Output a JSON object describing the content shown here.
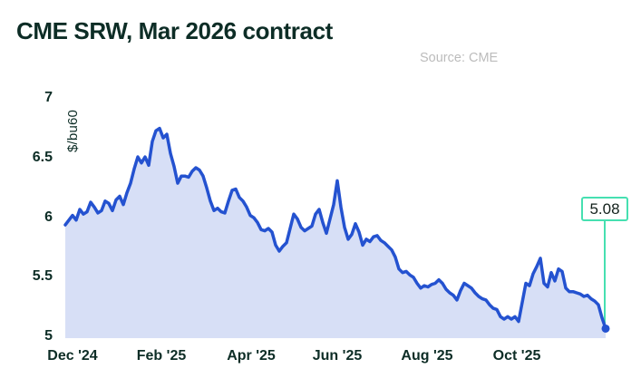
{
  "header": {
    "title": "CME SRW, Mar 2026 contract",
    "source_note": "Source: CME"
  },
  "chart_data": {
    "type": "area",
    "title": "CME SRW, Mar 2026 contract",
    "xlabel": "",
    "ylabel": "$/bu60",
    "ylim": [
      5,
      7
    ],
    "grid": false,
    "legend": "none",
    "x_tick_labels": [
      "Dec '24",
      "Feb '25",
      "Apr '25",
      "Jun '25",
      "Aug '25",
      "Oct '25"
    ],
    "y_tick_labels": [
      "7",
      "6.5",
      "6",
      "5.5",
      "5"
    ],
    "y_tick_values": [
      7,
      6.5,
      6,
      5.5,
      5
    ],
    "series": [
      {
        "name": "CME SRW Mar 2026 settlement price",
        "values": [
          5.95,
          5.99,
          6.03,
          5.99,
          6.08,
          6.04,
          6.06,
          6.14,
          6.1,
          6.05,
          6.07,
          6.15,
          6.13,
          6.07,
          6.16,
          6.19,
          6.12,
          6.22,
          6.3,
          6.42,
          6.52,
          6.47,
          6.52,
          6.45,
          6.65,
          6.74,
          6.76,
          6.68,
          6.71,
          6.55,
          6.44,
          6.3,
          6.36,
          6.36,
          6.35,
          6.4,
          6.43,
          6.41,
          6.36,
          6.26,
          6.15,
          6.07,
          6.09,
          6.06,
          6.05,
          6.15,
          6.24,
          6.25,
          6.18,
          6.15,
          6.1,
          6.03,
          6.01,
          5.97,
          5.91,
          5.9,
          5.92,
          5.89,
          5.78,
          5.73,
          5.77,
          5.8,
          5.92,
          6.04,
          6.0,
          5.93,
          5.9,
          5.92,
          5.94,
          6.04,
          6.08,
          5.97,
          5.88,
          6.0,
          6.12,
          6.32,
          6.1,
          5.93,
          5.83,
          5.87,
          5.96,
          5.89,
          5.78,
          5.83,
          5.81,
          5.85,
          5.86,
          5.82,
          5.8,
          5.77,
          5.74,
          5.68,
          5.58,
          5.55,
          5.56,
          5.53,
          5.51,
          5.46,
          5.42,
          5.44,
          5.43,
          5.45,
          5.46,
          5.49,
          5.46,
          5.41,
          5.38,
          5.36,
          5.32,
          5.4,
          5.46,
          5.44,
          5.42,
          5.38,
          5.35,
          5.33,
          5.32,
          5.28,
          5.25,
          5.24,
          5.18,
          5.16,
          5.18,
          5.16,
          5.18,
          5.14,
          5.3,
          5.46,
          5.44,
          5.54,
          5.6,
          5.67,
          5.46,
          5.43,
          5.55,
          5.48,
          5.58,
          5.56,
          5.42,
          5.39,
          5.39,
          5.38,
          5.37,
          5.35,
          5.36,
          5.33,
          5.31,
          5.28,
          5.17,
          5.08
        ]
      }
    ],
    "last_value": 5.08,
    "last_value_label": "5.08",
    "colors": {
      "line": "#2452d0",
      "fill": "#d7dff6",
      "callout": "#46e0b1",
      "text": "#0d2d26",
      "source_text": "#bcbcbc"
    }
  }
}
